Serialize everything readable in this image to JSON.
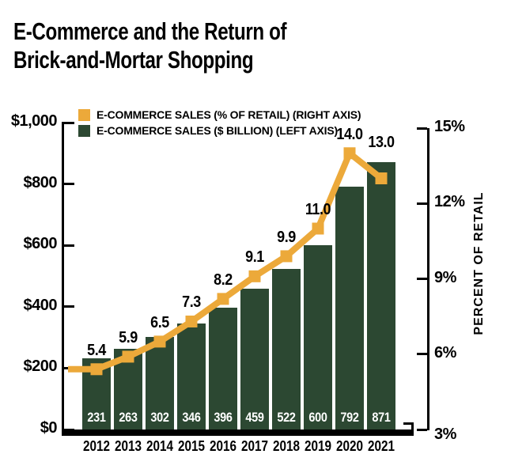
{
  "title": {
    "line1": "E-Commerce and the Return of",
    "line2": "Brick-and-Mortar Shopping"
  },
  "colors": {
    "bar": "#2c4832",
    "line": "#eca93a",
    "text": "#000000",
    "bar_value_text": "#ffffff",
    "axis": "#000000",
    "background": "#ffffff"
  },
  "legend": {
    "items": [
      {
        "label": "E-COMMERCE SALES (% OF RETAIL) (RIGHT AXIS)",
        "series": "line"
      },
      {
        "label": "E-COMMERCE SALES ($ BILLION) (LEFT AXIS)",
        "series": "bar"
      }
    ]
  },
  "chart_data": {
    "type": "combo_bar_line",
    "categories": [
      "2012",
      "2013",
      "2014",
      "2015",
      "2016",
      "2017",
      "2018",
      "2019",
      "2020",
      "2021"
    ],
    "series": [
      {
        "name": "E-COMMERCE SALES ($ BILLION) (LEFT AXIS)",
        "type": "bar",
        "axis": "left",
        "values": [
          231,
          263,
          302,
          346,
          396,
          459,
          522,
          600,
          792,
          871
        ],
        "value_labels": [
          "231",
          "263",
          "302",
          "346",
          "396",
          "459",
          "522",
          "600",
          "792",
          "871"
        ]
      },
      {
        "name": "E-COMMERCE SALES (% OF RETAIL) (RIGHT AXIS)",
        "type": "line",
        "axis": "right",
        "values": [
          5.4,
          5.9,
          6.5,
          7.3,
          8.2,
          9.1,
          9.9,
          11.0,
          14.0,
          13.0
        ],
        "value_labels": [
          "5.4",
          "5.9",
          "6.5",
          "7.3",
          "8.2",
          "9.1",
          "9.9",
          "11.0",
          "14.0",
          "13.0"
        ]
      }
    ],
    "left_axis": {
      "min": 0,
      "max": 1000,
      "tick_values": [
        1000,
        800,
        600,
        400,
        200,
        0
      ],
      "tick_labels": [
        "$1,000",
        "$800",
        "$600",
        "$400",
        "$200",
        "$0"
      ]
    },
    "right_axis": {
      "min": 3,
      "max": 15,
      "tick_values": [
        15,
        12,
        9,
        6,
        3
      ],
      "tick_labels": [
        "15%",
        "12%",
        "9%",
        "6%",
        "3%"
      ],
      "title": "PERCENT OF RETAIL"
    },
    "grid": false,
    "legend_position": "top-left-inside"
  }
}
